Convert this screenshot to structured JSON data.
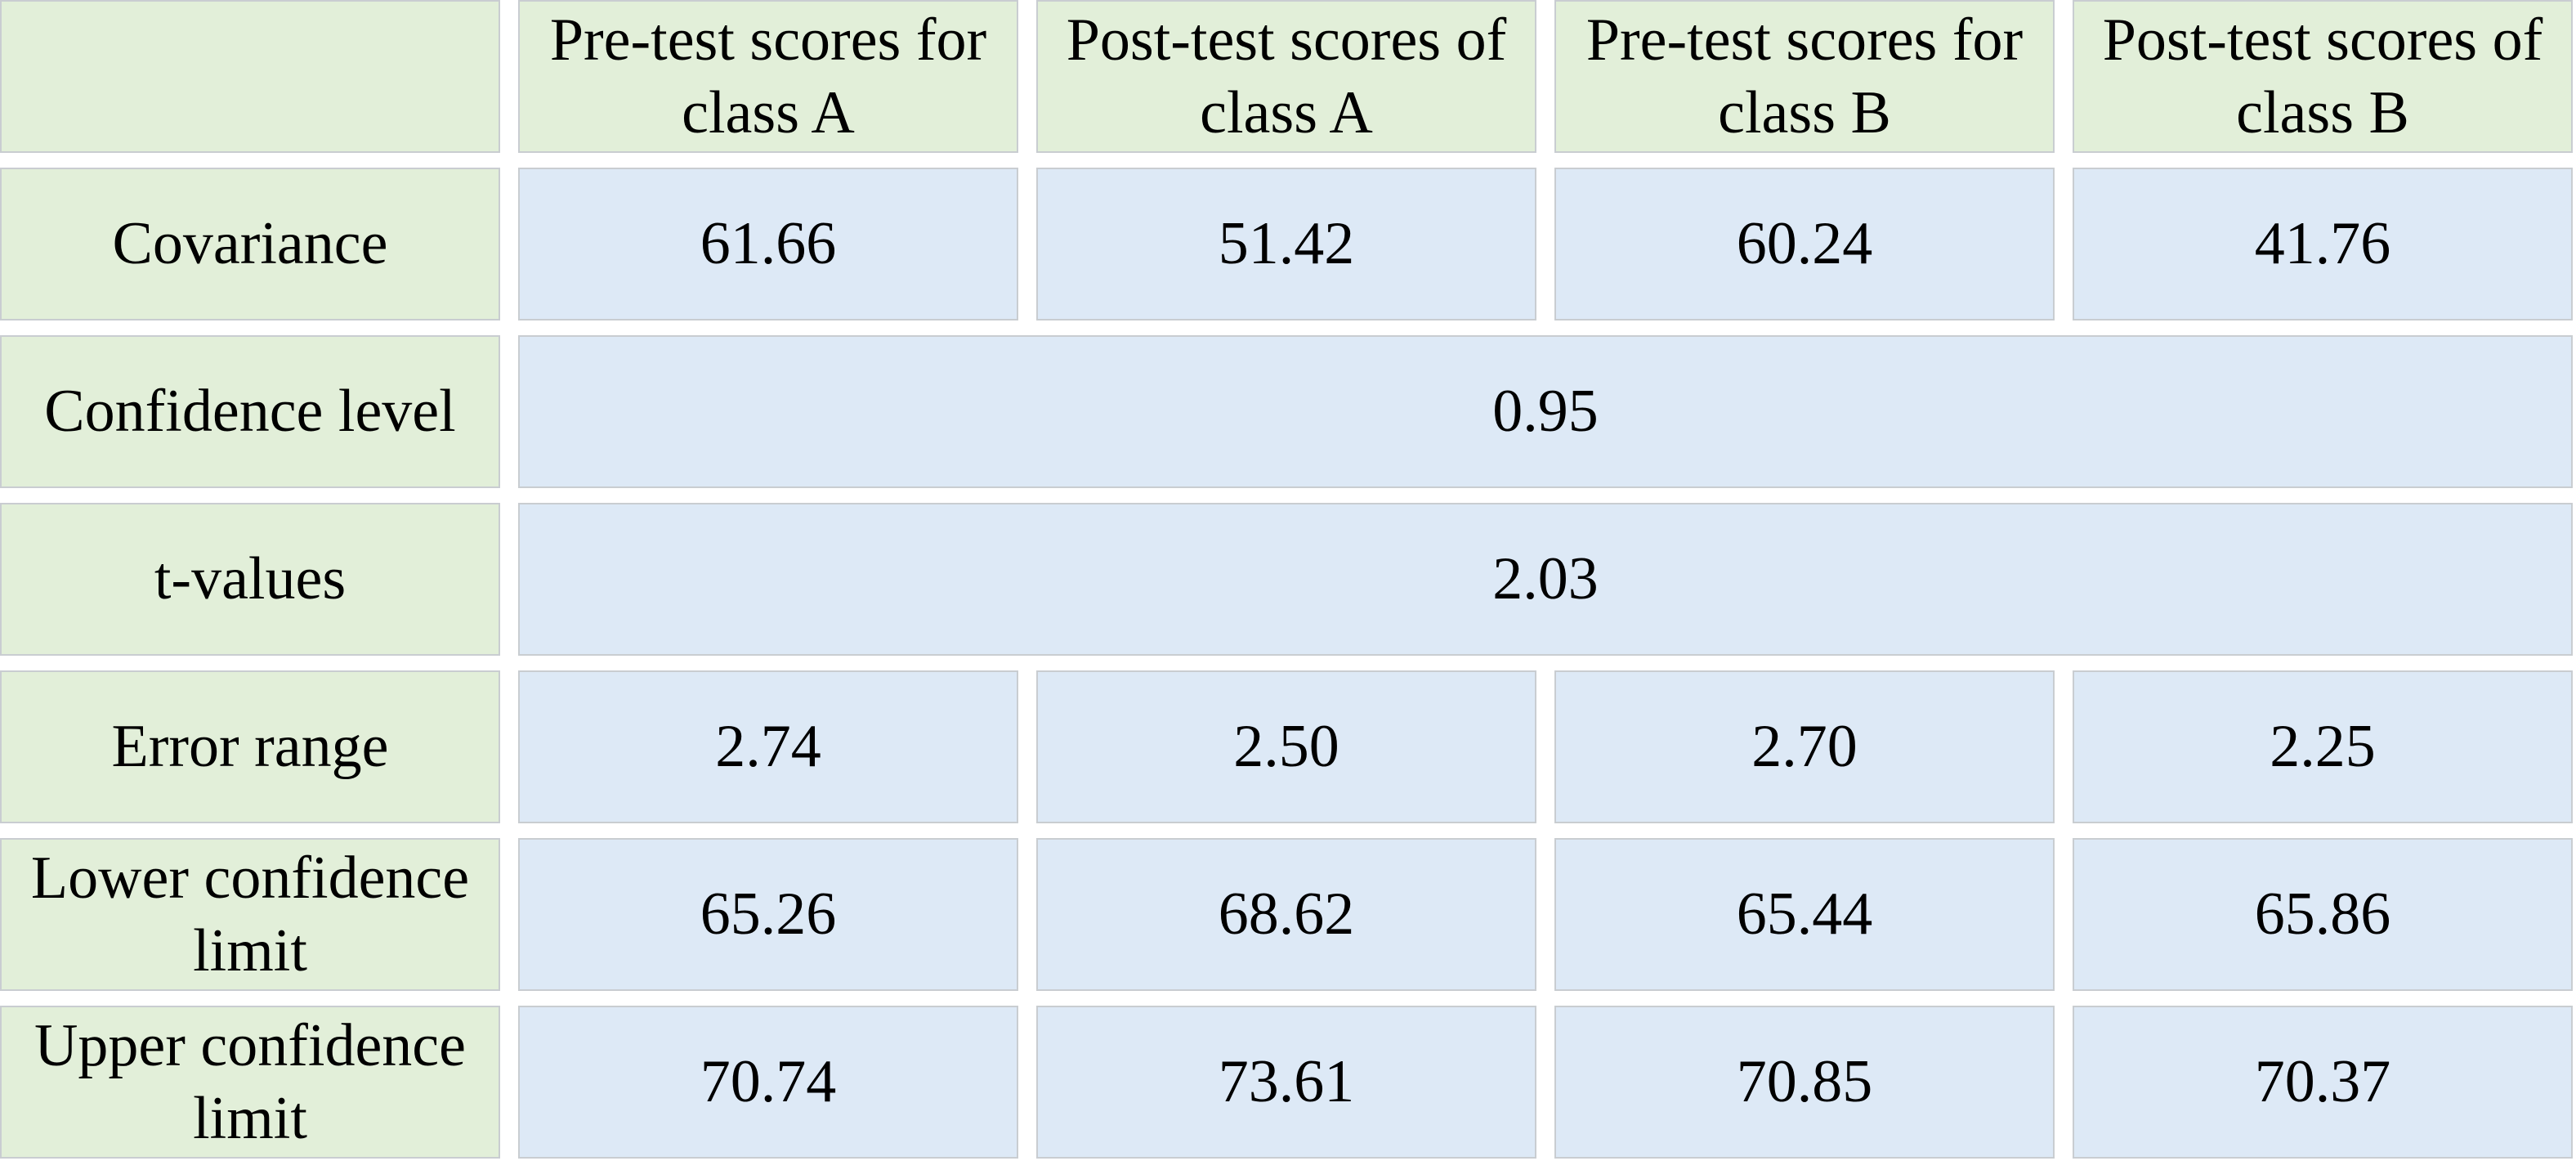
{
  "table": {
    "column_headers": [
      "Pre-test scores for class A",
      "Post-test scores of class A",
      "Pre-test scores for class B",
      "Post-test scores of class B"
    ],
    "rows": [
      {
        "label": "Covariance",
        "cells": [
          "61.66",
          "51.42",
          "60.24",
          "41.76"
        ]
      },
      {
        "label": "Confidence level",
        "cells": [
          "0.95"
        ]
      },
      {
        "label": "t-values",
        "cells": [
          "2.03"
        ]
      },
      {
        "label": "Error range",
        "cells": [
          "2.74",
          "2.50",
          "2.70",
          "2.25"
        ]
      },
      {
        "label": "Lower confidence limit",
        "cells": [
          "65.26",
          "68.62",
          "65.44",
          "65.86"
        ]
      },
      {
        "label": "Upper confidence limit",
        "cells": [
          "70.74",
          "73.61",
          "70.85",
          "70.37"
        ]
      }
    ]
  }
}
